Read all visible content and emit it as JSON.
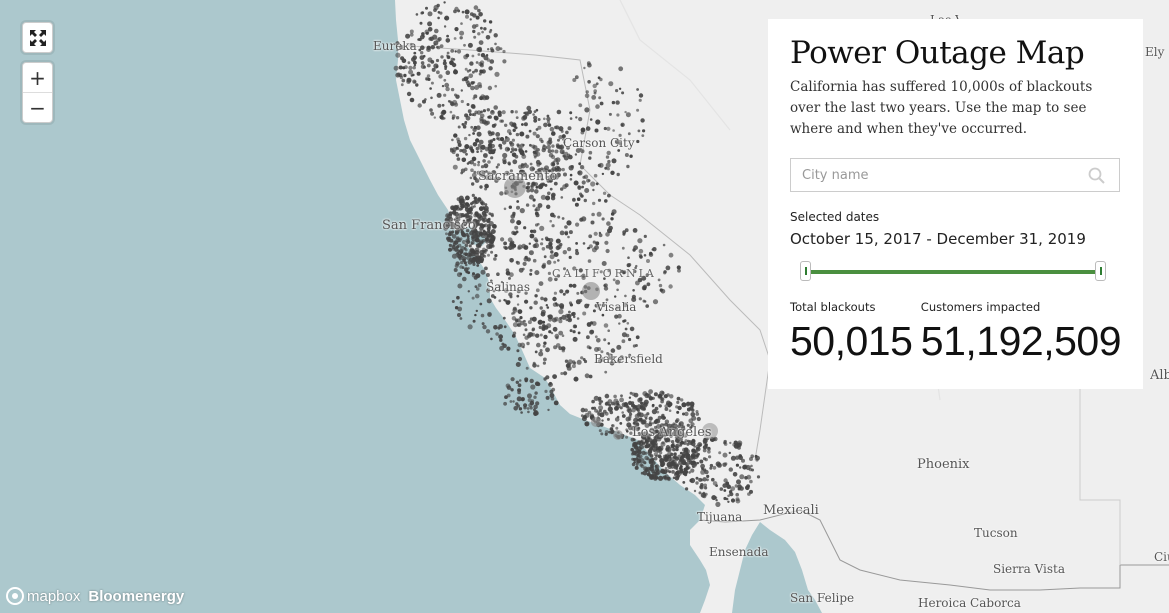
{
  "panel": {
    "title": "Power Outage Map",
    "description": "California has suffered 10,000s of blackouts over the last two years. Use the map to see where and when they've occurred.",
    "search_placeholder": "City name",
    "search_value": "",
    "selected_dates_label": "Selected dates",
    "selected_dates_value": "October 15, 2017 - December 31, 2019",
    "slider_range": [
      0,
      1
    ],
    "total_blackouts_label": "Total blackouts",
    "total_blackouts_value": "50,015",
    "customers_impacted_label": "Customers impacted",
    "customers_impacted_value": "51,192,509"
  },
  "controls": {
    "fullscreen_icon": "fullscreen-icon",
    "zoom_in": "+",
    "zoom_out": "−"
  },
  "map": {
    "state_label": "CALIFORNIA",
    "cities": [
      "Eureka",
      "Carson City",
      "Sacramento",
      "San Francisco",
      "Salinas",
      "Visalia",
      "Bakersfield",
      "Los Angeles",
      "Phoenix",
      "Mexicali",
      "Tijuana",
      "Tucson",
      "Ensenada",
      "Sierra Vista",
      "San Felipe",
      "Heroica Caborca",
      "Ely",
      "Las Vegas",
      "Albuquerque",
      "Ciudad Juárez"
    ],
    "colors": {
      "water": "#acc8cd",
      "land": "#efefef",
      "outage": "#444444",
      "slider": "#4a8f3f"
    }
  },
  "attribution": {
    "mapbox": "mapbox",
    "brand": "Bloomenergy"
  }
}
